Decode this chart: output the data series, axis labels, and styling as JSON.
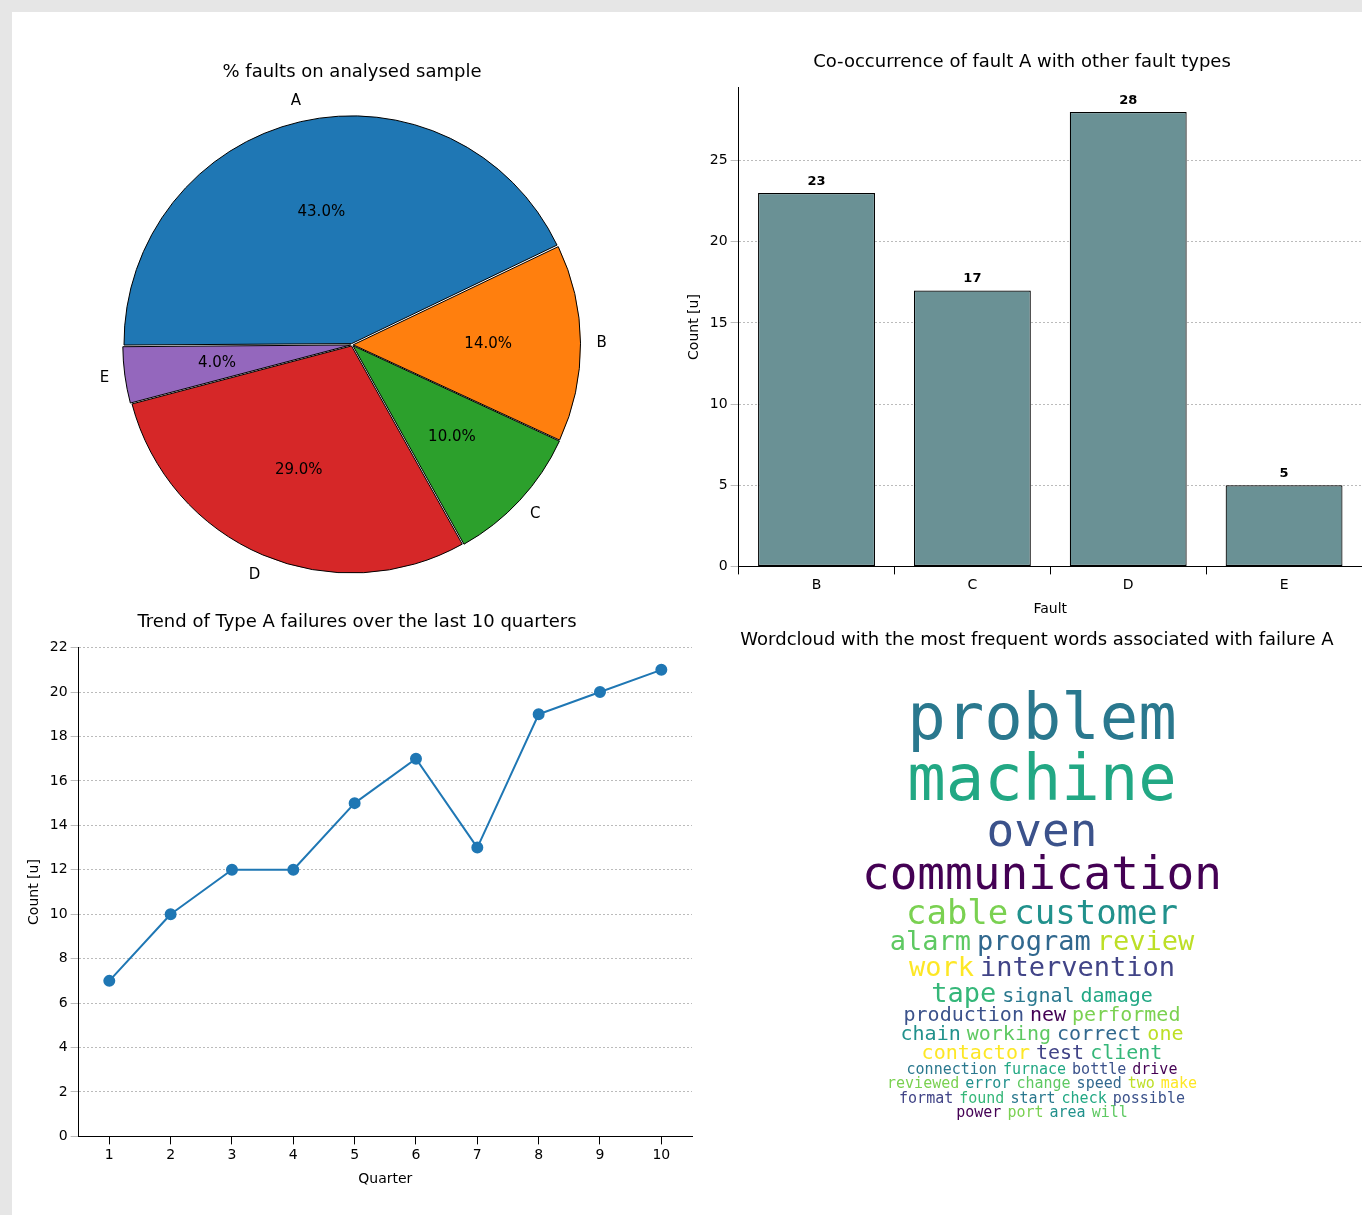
{
  "chart_data": [
    {
      "type": "pie",
      "title": "% faults on analysed sample",
      "categories": [
        "A",
        "B",
        "C",
        "D",
        "E"
      ],
      "values": [
        43,
        14,
        10,
        29,
        4
      ],
      "colors": [
        "#1f77b4",
        "#ff7f0e",
        "#2ca02c",
        "#d62728",
        "#9467bd"
      ],
      "value_labels": [
        "43.0%",
        "14.0%",
        "10.0%",
        "29.0%",
        "4.0%"
      ],
      "legend": false
    },
    {
      "type": "bar",
      "title": "Co-occurrence of fault A with other fault types",
      "categories": [
        "B",
        "C",
        "D",
        "E"
      ],
      "values": [
        23,
        17,
        28,
        5
      ],
      "color": "#6a9195",
      "xlabel": "Fault",
      "ylabel": "Count [u]",
      "ylim": [
        0,
        29.5
      ],
      "yticks": [
        0,
        5,
        10,
        15,
        20,
        25
      ],
      "grid": "y",
      "data_labels": true,
      "legend": false
    },
    {
      "type": "line",
      "title": "Trend of Type A failures over the last 10 quarters",
      "x": [
        1,
        2,
        3,
        4,
        5,
        6,
        7,
        8,
        9,
        10
      ],
      "values": [
        7,
        10,
        12,
        12,
        15,
        17,
        13,
        19,
        20,
        21
      ],
      "color": "#1f77b4",
      "xlabel": "Quarter",
      "ylabel": "Count [u]",
      "xlim": [
        0.5,
        10.5
      ],
      "xticks": [
        1,
        2,
        3,
        4,
        5,
        6,
        7,
        8,
        9,
        10
      ],
      "ylim": [
        0,
        22
      ],
      "yticks": [
        0,
        2,
        4,
        6,
        8,
        10,
        12,
        14,
        16,
        18,
        20,
        22
      ],
      "grid": "y",
      "marker": "circle",
      "line_style": "solid",
      "legend": false
    },
    {
      "type": "other",
      "title": "Wordcloud with the most frequent words associated with failure A",
      "annotations": [
        "problem",
        "machine",
        "oven",
        "communication",
        "cable",
        "customer",
        "alarm",
        "program",
        "review",
        "work",
        "intervention",
        "tape",
        "signal",
        "damage",
        "production",
        "new",
        "performed",
        "chain",
        "working",
        "correct",
        "one",
        "contactor",
        "test",
        "client",
        "connection",
        "furnace",
        "bottle",
        "drive",
        "reviewed",
        "error",
        "change",
        "speed",
        "two",
        "make",
        "format",
        "found",
        "start",
        "check",
        "possible",
        "power",
        "port",
        "area",
        "will"
      ]
    }
  ]
}
